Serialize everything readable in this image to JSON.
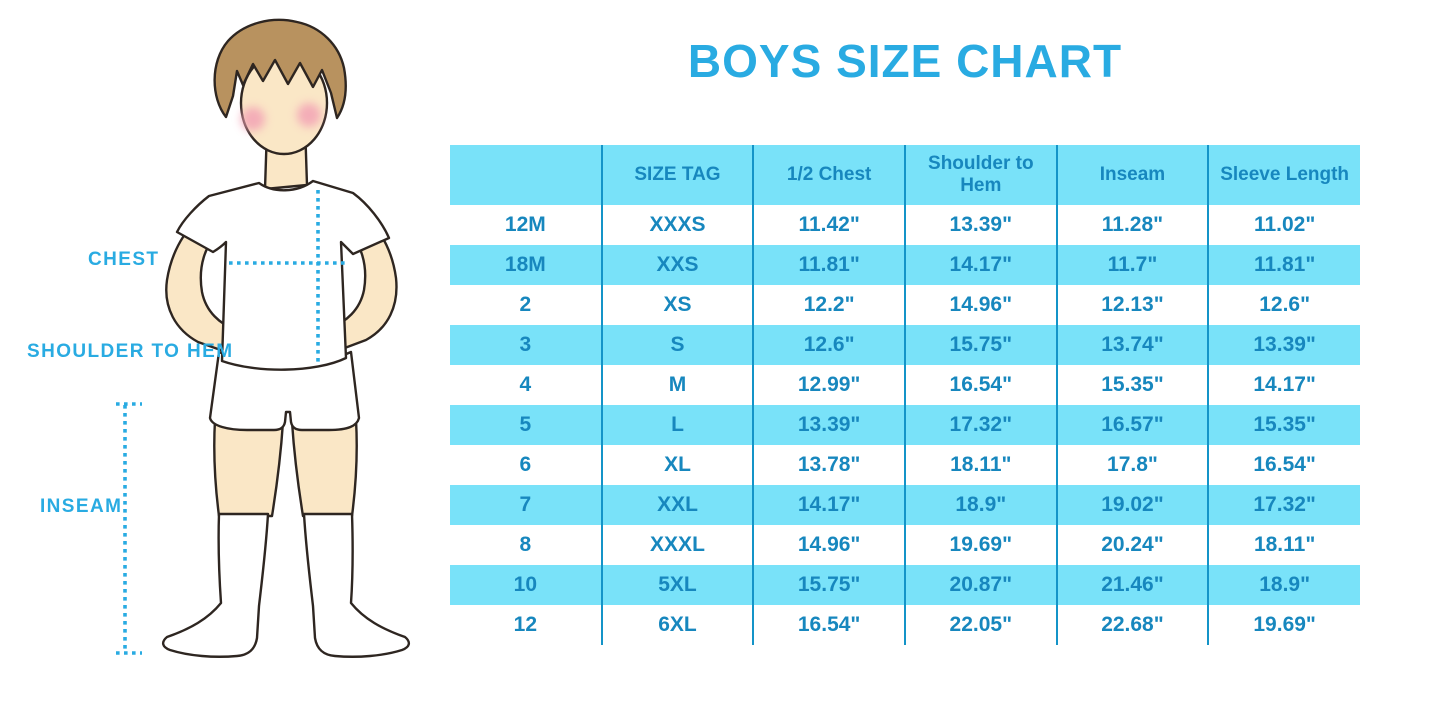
{
  "title": "BOYS SIZE CHART",
  "figure": {
    "labels": {
      "chest": "CHEST",
      "shoulder_to_hem": "SHOULDER TO HEM",
      "inseam": "INSEAM"
    }
  },
  "colors": {
    "accent_blue": "#29ABE2",
    "row_highlight": "#79E2F9",
    "table_text": "#1787BE",
    "grid_line": "#1494C8",
    "skin": "#FAE7C6",
    "hair": "#B8925F",
    "blush": "#F3A3B5"
  },
  "chart_data": {
    "type": "table",
    "title": "BOYS SIZE CHART",
    "columns": [
      "",
      "SIZE TAG",
      "1/2 Chest",
      "Shoulder to Hem",
      "Inseam",
      "Sleeve Length"
    ],
    "rows": [
      [
        "12M",
        "XXXS",
        "11.42\"",
        "13.39\"",
        "11.28\"",
        "11.02\""
      ],
      [
        "18M",
        "XXS",
        "11.81\"",
        "14.17\"",
        "11.7\"",
        "11.81\""
      ],
      [
        "2",
        "XS",
        "12.2\"",
        "14.96\"",
        "12.13\"",
        "12.6\""
      ],
      [
        "3",
        "S",
        "12.6\"",
        "15.75\"",
        "13.74\"",
        "13.39\""
      ],
      [
        "4",
        "M",
        "12.99\"",
        "16.54\"",
        "15.35\"",
        "14.17\""
      ],
      [
        "5",
        "L",
        "13.39\"",
        "17.32\"",
        "16.57\"",
        "15.35\""
      ],
      [
        "6",
        "XL",
        "13.78\"",
        "18.11\"",
        "17.8\"",
        "16.54\""
      ],
      [
        "7",
        "XXL",
        "14.17\"",
        "18.9\"",
        "19.02\"",
        "17.32\""
      ],
      [
        "8",
        "XXXL",
        "14.96\"",
        "19.69\"",
        "20.24\"",
        "18.11\""
      ],
      [
        "10",
        "5XL",
        "15.75\"",
        "20.87\"",
        "21.46\"",
        "18.9\""
      ],
      [
        "12",
        "6XL",
        "16.54\"",
        "22.05\"",
        "22.68\"",
        "19.69\""
      ]
    ],
    "striping": "header and every second data row highlighted light blue",
    "legend_position": "none",
    "grid": "vertical column separators only"
  }
}
